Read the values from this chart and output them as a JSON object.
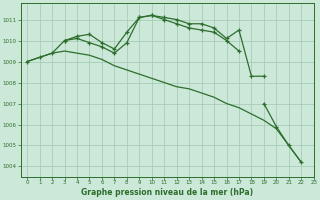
{
  "title": "Graphe pression niveau de la mer (hPa)",
  "background_color": "#cce8d8",
  "plot_bg_color": "#cce8d8",
  "grid_color": "#a0c8b0",
  "line_color": "#2d6e2d",
  "xlim": [
    -0.5,
    23
  ],
  "ylim": [
    1003.5,
    1011.8
  ],
  "yticks": [
    1004,
    1005,
    1006,
    1007,
    1008,
    1009,
    1010,
    1011
  ],
  "xticks": [
    0,
    1,
    2,
    3,
    4,
    5,
    6,
    7,
    8,
    9,
    10,
    11,
    12,
    13,
    14,
    15,
    16,
    17,
    18,
    19,
    20,
    21,
    22,
    23
  ],
  "series": [
    {
      "x": [
        0,
        1,
        2,
        3,
        4,
        5,
        6,
        7,
        8,
        9,
        10,
        11,
        12,
        13,
        14,
        15,
        16,
        17,
        18,
        19
      ],
      "y": [
        1009.0,
        1009.2,
        1009.4,
        1010.0,
        1010.2,
        1010.3,
        1009.9,
        1009.6,
        1010.4,
        1011.1,
        1011.2,
        1011.1,
        1011.0,
        1010.8,
        1010.8,
        1010.6,
        1010.1,
        1010.5,
        1008.3,
        1008.3
      ],
      "has_markers": true
    },
    {
      "x": [
        0,
        1,
        2,
        3,
        4,
        5,
        6,
        7,
        8,
        9,
        10,
        11,
        12,
        13,
        14,
        15,
        16,
        17,
        18,
        19,
        20,
        21,
        22
      ],
      "y": [
        1009.0,
        1009.2,
        1009.4,
        1009.5,
        1009.4,
        1009.3,
        1009.1,
        1008.8,
        1008.6,
        1008.4,
        1008.2,
        1008.0,
        1007.8,
        1007.7,
        1007.5,
        1007.3,
        1007.0,
        1006.8,
        1006.5,
        1006.2,
        1005.8,
        1005.0,
        1004.2
      ],
      "has_markers": false
    },
    {
      "x": [
        3,
        4,
        5,
        6,
        7,
        8,
        9,
        10,
        11,
        12,
        13,
        14,
        15,
        16,
        17
      ],
      "y": [
        1010.0,
        1010.1,
        1009.9,
        1009.7,
        1009.4,
        1009.9,
        1011.1,
        1011.2,
        1011.0,
        1010.8,
        1010.6,
        1010.5,
        1010.4,
        1010.0,
        1009.5
      ],
      "has_markers": true
    },
    {
      "x": [
        19,
        20,
        21,
        22
      ],
      "y": [
        1007.0,
        1005.9,
        1005.0,
        1004.2
      ],
      "has_markers": true
    }
  ]
}
